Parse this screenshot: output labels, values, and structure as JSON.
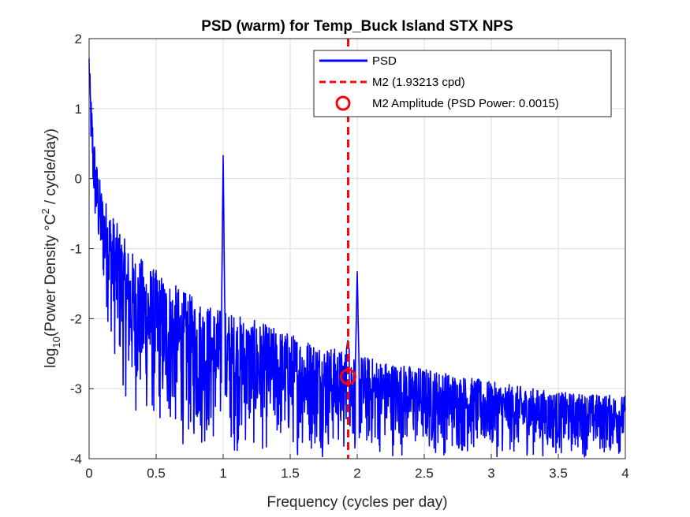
{
  "chart_data": {
    "type": "line",
    "title": "PSD (warm) for Temp_Buck Island STX NPS",
    "xlabel": "Frequency (cycles per day)",
    "ylabel": {
      "prefix": "log",
      "sub": "10",
      "middle": "(Power Density °C",
      "sup": "2",
      "suffix": " / cycle/day)"
    },
    "xlim": [
      0,
      4
    ],
    "ylim": [
      -4,
      2
    ],
    "xticks": [
      "0",
      "0.5",
      "1",
      "1.5",
      "2",
      "2.5",
      "3",
      "3.5",
      "4"
    ],
    "yticks": [
      "-4",
      "-3",
      "-2",
      "-1",
      "0",
      "1",
      "2"
    ],
    "grid": true,
    "legend_position": "top-right",
    "series": [
      {
        "name": "PSD",
        "color": "#0000ff",
        "envelope_x": [
          0,
          0.01,
          0.03,
          0.05,
          0.1,
          0.2,
          0.3,
          0.5,
          0.7,
          0.9,
          1.2,
          1.5,
          1.8,
          2.2,
          2.5,
          3.0,
          3.5,
          4.0
        ],
        "envelope_top": [
          1.9,
          1.3,
          0.8,
          0.3,
          -0.2,
          -0.6,
          -1.0,
          -1.3,
          -1.6,
          -1.8,
          -2.0,
          -2.2,
          -2.4,
          -2.6,
          -2.7,
          -2.9,
          -3.05,
          -3.1
        ],
        "envelope_bottom": [
          1.0,
          0.4,
          -0.6,
          -1.0,
          -1.7,
          -2.8,
          -3.4,
          -3.7,
          -3.9,
          -4.0,
          -4.0,
          -4.0,
          -4.0,
          -4.0,
          -4.0,
          -4.0,
          -4.0,
          -4.0
        ],
        "peaks": [
          {
            "x": 1.0,
            "y": 0.33
          },
          {
            "x": 2.0,
            "y": -1.33
          },
          {
            "x": 1.93,
            "y": -2.3
          }
        ]
      },
      {
        "name": "M2 (1.93213 cpd)",
        "color": "#ff0000",
        "style": "dashed",
        "x": 1.93213
      },
      {
        "name": "M2 Amplitude (PSD Power: 0.0015)",
        "color": "#ff0000",
        "marker": "circle",
        "x": 1.93213,
        "y": -2.83
      }
    ]
  }
}
